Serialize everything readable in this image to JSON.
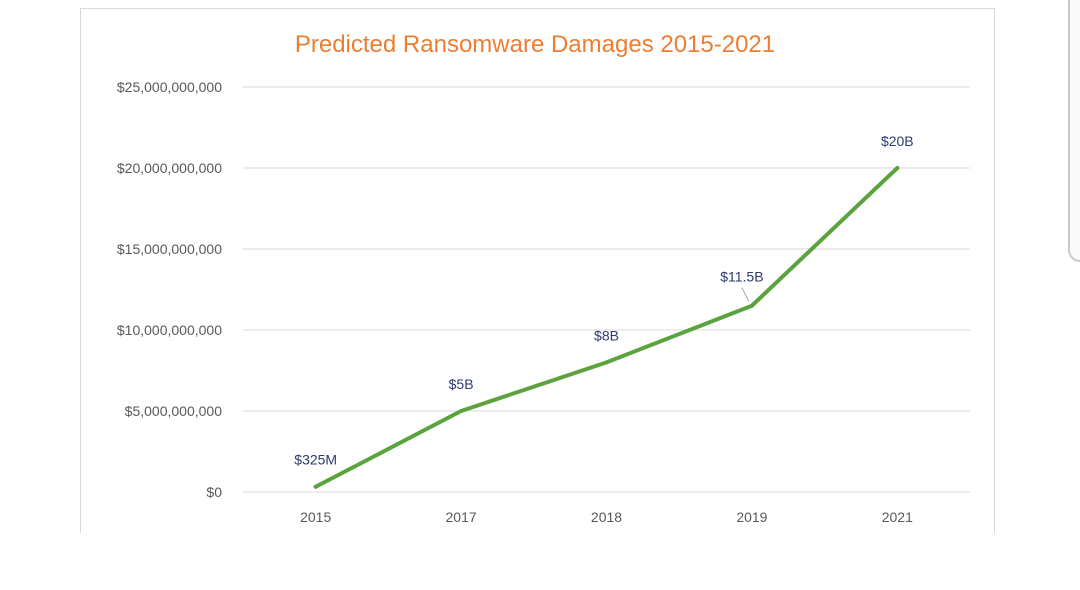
{
  "chart_data": {
    "type": "line",
    "title": "Predicted Ransomware Damages 2015-2021",
    "categories": [
      "2015",
      "2017",
      "2018",
      "2019",
      "2021"
    ],
    "series": [
      {
        "name": "Predicted Ransomware Damages",
        "values": [
          325000000,
          5000000000,
          8000000000,
          11500000000,
          20000000000
        ],
        "data_labels": [
          "$325M",
          "$5B",
          "$8B",
          "$11.5B",
          "$20B"
        ]
      }
    ],
    "ylim": [
      0,
      25000000000
    ],
    "yticks": [
      0,
      5000000000,
      10000000000,
      15000000000,
      20000000000,
      25000000000
    ],
    "ytick_labels": [
      "$0",
      "$5,000,000,000",
      "$10,000,000,000",
      "$15,000,000,000",
      "$20,000,000,000",
      "$25,000,000,000"
    ],
    "xlabel": "",
    "ylabel": "",
    "grid": true,
    "legend": "none"
  },
  "colors": {
    "title": "#ed7d31",
    "line": "#5aa33e",
    "grid": "#d9d9d9",
    "tick_text": "#595959",
    "label_text": "#2f3a6e"
  }
}
